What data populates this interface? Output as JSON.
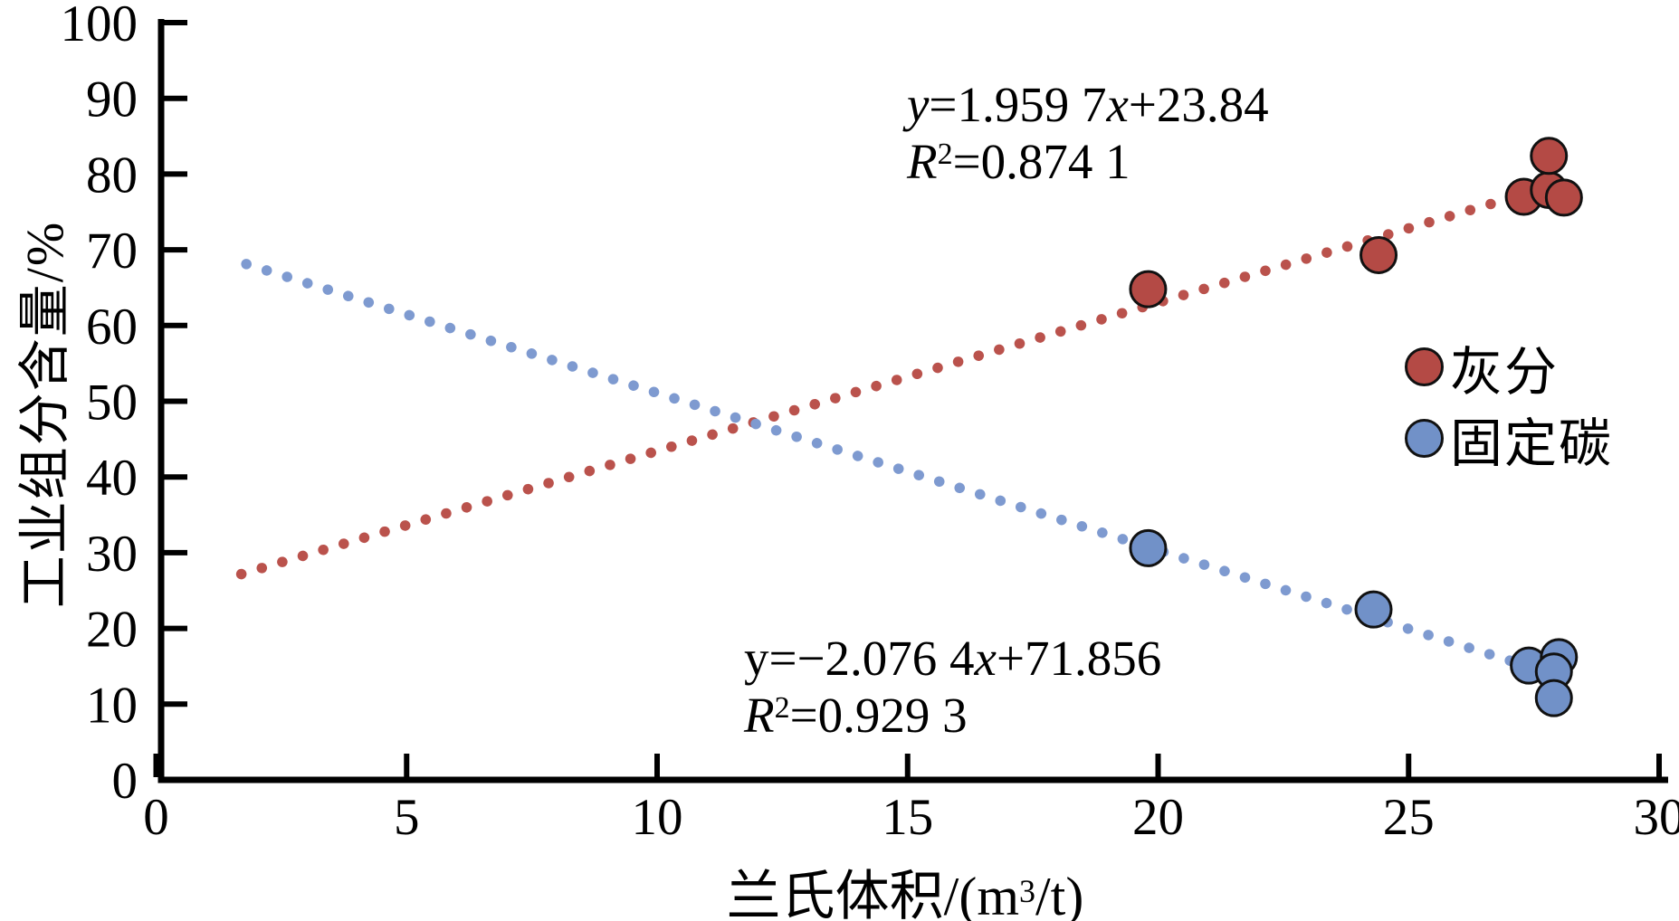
{
  "chart_data": {
    "type": "scatter",
    "title": "",
    "xlabel_parts": {
      "pre": "兰氏体积/(m",
      "sup": "3",
      "post": "/t)"
    },
    "ylabel": "工业组分含量/%",
    "xlim": [
      0,
      30
    ],
    "ylim": [
      0,
      100
    ],
    "x_ticks": [
      0,
      5,
      10,
      15,
      20,
      25,
      30
    ],
    "y_ticks": [
      0,
      10,
      20,
      30,
      40,
      50,
      60,
      70,
      80,
      90,
      100
    ],
    "grid": false,
    "legend_position": "right-middle",
    "series": [
      {
        "key": "ash",
        "name": "灰分",
        "color": "#B44A45",
        "trend_color": "#BA524C",
        "points": [
          [
            19.8,
            64.8
          ],
          [
            24.4,
            69.3
          ],
          [
            27.3,
            77.0
          ],
          [
            27.8,
            77.9
          ],
          [
            28.1,
            76.9
          ],
          [
            27.8,
            82.4
          ]
        ],
        "trendline": {
          "slope": 1.9597,
          "intercept": 23.84,
          "x_start": 1.7,
          "x_end": 27.6,
          "style": "dotted"
        },
        "equation_parts": [
          {
            "t": "y",
            "i": true
          },
          {
            "t": "=1.959 7"
          },
          {
            "t": "x",
            "i": true
          },
          {
            "t": "+23.84"
          }
        ],
        "r_squared_parts": [
          {
            "t": "R",
            "i": true
          },
          {
            "t": "2",
            "sup": true
          },
          {
            "t": "=0.874 1"
          }
        ]
      },
      {
        "key": "fixed-carbon",
        "name": "固定碳",
        "color": "#7191C8",
        "trend_color": "#7E9AD0",
        "points": [
          [
            19.8,
            30.6
          ],
          [
            24.3,
            22.5
          ],
          [
            27.4,
            15.1
          ],
          [
            28.0,
            16.2
          ],
          [
            27.9,
            14.3
          ],
          [
            27.9,
            10.8
          ]
        ],
        "trendline": {
          "slope": -2.0764,
          "intercept": 71.856,
          "x_start": 1.8,
          "x_end": 27.05,
          "style": "dotted"
        },
        "equation_parts": [
          {
            "t": "y"
          },
          {
            "t": "=−2.076 4"
          },
          {
            "t": "x",
            "i": true
          },
          {
            "t": "+71.856"
          }
        ],
        "r_squared_parts": [
          {
            "t": "R",
            "i": true
          },
          {
            "t": "2",
            "sup": true
          },
          {
            "t": "=0.929 3"
          }
        ]
      }
    ]
  }
}
